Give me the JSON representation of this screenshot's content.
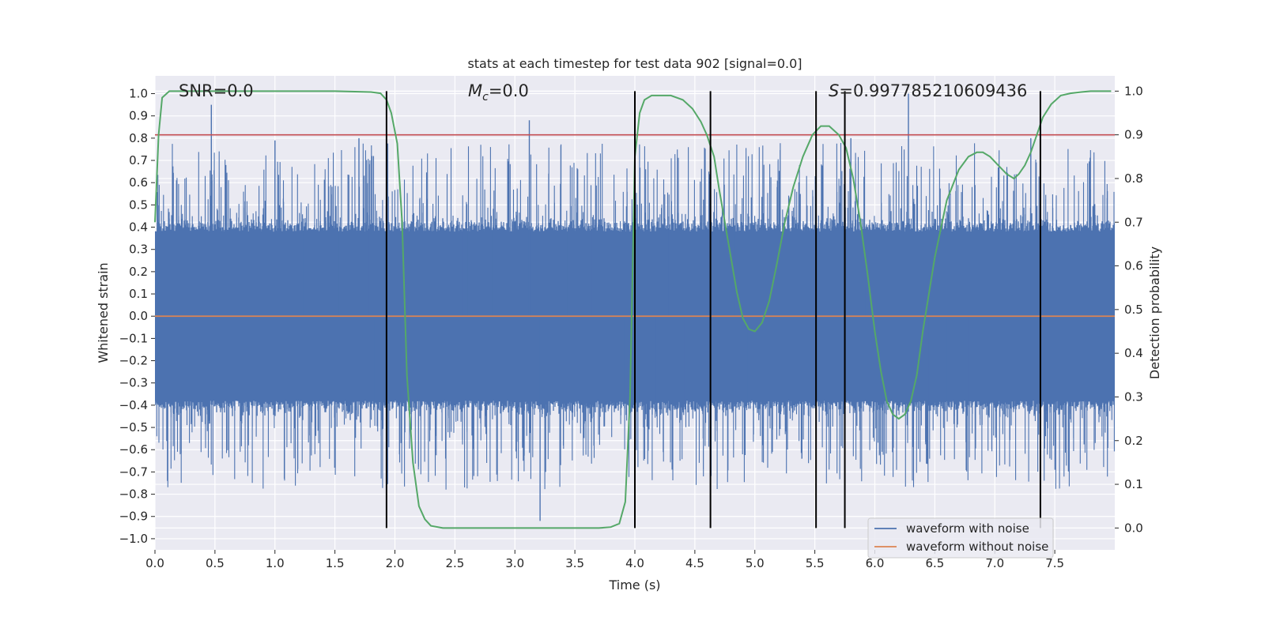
{
  "chart_data": {
    "type": "line",
    "title": "stats at each timestep for test data 902 [signal=0.0]",
    "xlabel": "Time (s)",
    "ylabel": "Whitened strain",
    "y2label": "Detection probability",
    "xlim": [
      0.0,
      8.0
    ],
    "ylim": [
      -1.05,
      1.08
    ],
    "y2lim": [
      -0.05,
      1.035
    ],
    "x_ticks": [
      0.0,
      0.5,
      1.0,
      1.5,
      2.0,
      2.5,
      3.0,
      3.5,
      4.0,
      4.5,
      5.0,
      5.5,
      6.0,
      6.5,
      7.0,
      7.5
    ],
    "x_tick_labels": [
      "0.0",
      "0.5",
      "1.0",
      "1.5",
      "2.0",
      "2.5",
      "3.0",
      "3.5",
      "4.0",
      "4.5",
      "5.0",
      "5.5",
      "6.0",
      "6.5",
      "7.0",
      "7.5"
    ],
    "y_ticks": [
      -1.0,
      -0.9,
      -0.8,
      -0.7,
      -0.6,
      -0.5,
      -0.4,
      -0.3,
      -0.2,
      -0.1,
      0.0,
      0.1,
      0.2,
      0.3,
      0.4,
      0.5,
      0.6,
      0.7,
      0.8,
      0.9,
      1.0
    ],
    "y_tick_labels": [
      "−1.0",
      "−0.9",
      "−0.8",
      "−0.7",
      "−0.6",
      "−0.5",
      "−0.4",
      "−0.3",
      "−0.2",
      "−0.1",
      "0.0",
      "0.1",
      "0.2",
      "0.3",
      "0.4",
      "0.5",
      "0.6",
      "0.7",
      "0.8",
      "0.9",
      "1.0"
    ],
    "y2_ticks": [
      0.0,
      0.1,
      0.2,
      0.3,
      0.4,
      0.5,
      0.6,
      0.7,
      0.8,
      0.9,
      1.0
    ],
    "y2_tick_labels": [
      "0.0",
      "0.1",
      "0.2",
      "0.3",
      "0.4",
      "0.5",
      "0.6",
      "0.7",
      "0.8",
      "0.9",
      "1.0"
    ],
    "grid": true,
    "legend_position": "bottom-right",
    "annotations": {
      "snr": "SNR=0.0",
      "mc_symbol": "M",
      "mc_sub": "c",
      "mc_value": "=0.0",
      "s_symbol": "S",
      "s_value": "=0.997785210609436"
    },
    "noise_waveform": {
      "name": "waveform with noise",
      "color": "#4c72b0",
      "description_range": [
        -0.92,
        0.95
      ],
      "peaks_x": [
        0.47,
        1.0,
        1.7,
        3.12,
        3.21,
        4.0,
        5.8,
        6.28,
        7.3
      ],
      "peaks_y": [
        0.95,
        0.79,
        0.8,
        0.88,
        -0.92,
        0.8,
        0.8,
        1.0,
        0.8
      ]
    },
    "clean_waveform": {
      "name": "waveform without noise",
      "color": "#dd8452",
      "x": [
        0.0,
        8.0
      ],
      "y": [
        0.0,
        0.0
      ]
    },
    "threshold": {
      "axis": "y2",
      "value": 0.9,
      "color": "#c44e52"
    },
    "detection_probability": {
      "axis": "y2",
      "color": "#55a868",
      "x": [
        0.0,
        0.03,
        0.06,
        0.12,
        0.2,
        0.5,
        1.0,
        1.5,
        1.8,
        1.88,
        1.93,
        1.97,
        2.02,
        2.06,
        2.1,
        2.15,
        2.2,
        2.25,
        2.3,
        2.4,
        2.7,
        3.0,
        3.5,
        3.7,
        3.8,
        3.87,
        3.92,
        3.96,
        4.0,
        4.04,
        4.08,
        4.14,
        4.2,
        4.3,
        4.4,
        4.48,
        4.55,
        4.6,
        4.66,
        4.7,
        4.75,
        4.8,
        4.85,
        4.9,
        4.95,
        5.0,
        5.06,
        5.12,
        5.18,
        5.25,
        5.32,
        5.4,
        5.48,
        5.55,
        5.62,
        5.7,
        5.76,
        5.82,
        5.88,
        5.94,
        6.0,
        6.05,
        6.1,
        6.15,
        6.2,
        6.25,
        6.3,
        6.35,
        6.4,
        6.5,
        6.6,
        6.7,
        6.78,
        6.85,
        6.9,
        6.96,
        7.03,
        7.1,
        7.16,
        7.2,
        7.25,
        7.3,
        7.35,
        7.4,
        7.47,
        7.55,
        7.63,
        7.72,
        7.8,
        7.88,
        7.97
      ],
      "y": [
        0.7,
        0.9,
        0.985,
        1.0,
        1.0,
        1.0,
        1.0,
        1.0,
        0.998,
        0.995,
        0.98,
        0.95,
        0.88,
        0.7,
        0.35,
        0.15,
        0.05,
        0.02,
        0.005,
        0.0,
        0.0,
        0.0,
        0.0,
        0.0,
        0.002,
        0.01,
        0.06,
        0.3,
        0.85,
        0.95,
        0.98,
        0.99,
        0.99,
        0.99,
        0.98,
        0.96,
        0.93,
        0.9,
        0.85,
        0.78,
        0.7,
        0.62,
        0.54,
        0.48,
        0.455,
        0.45,
        0.47,
        0.52,
        0.6,
        0.7,
        0.78,
        0.85,
        0.9,
        0.92,
        0.92,
        0.9,
        0.87,
        0.8,
        0.7,
        0.58,
        0.45,
        0.36,
        0.29,
        0.26,
        0.25,
        0.26,
        0.29,
        0.35,
        0.45,
        0.62,
        0.75,
        0.82,
        0.85,
        0.86,
        0.86,
        0.85,
        0.83,
        0.81,
        0.8,
        0.81,
        0.83,
        0.86,
        0.9,
        0.94,
        0.97,
        0.99,
        0.995,
        0.998,
        1.0,
        1.0,
        1.0
      ]
    },
    "vertical_lines": {
      "color": "#000000",
      "x": [
        1.93,
        4.0,
        4.63,
        5.51,
        5.75,
        7.38
      ],
      "y2_range": [
        0.0,
        1.0
      ]
    },
    "legend": [
      {
        "label": "waveform with noise",
        "color": "#4c72b0"
      },
      {
        "label": "waveform without noise",
        "color": "#dd8452"
      }
    ]
  }
}
